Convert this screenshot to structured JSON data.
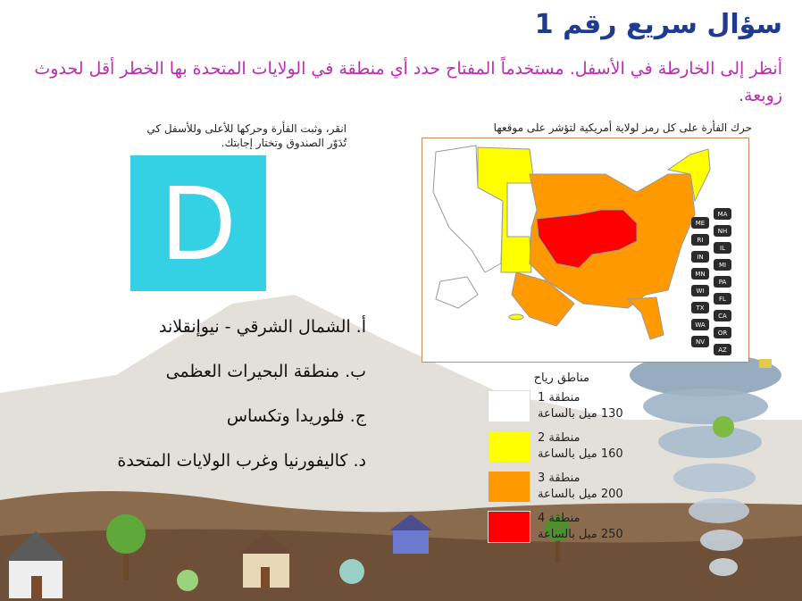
{
  "title": "سؤال سريع رقم 1",
  "prompt": "أنظر إلى الخارطة في الأسفل. مستخدماً المفتاح حدد أي منطقة في الولايات المتحدة بها الخطر أقل لحدوث زوبعة.",
  "map": {
    "instruction": "حرك الفأرة على كل رمز لولاية أمريكية لتؤشر على موقعها",
    "state_codes": [
      "MA",
      "ME",
      "NH",
      "RI",
      "IL",
      "IN",
      "MI",
      "MN",
      "PA",
      "WI",
      "FL",
      "TX",
      "CA",
      "WA",
      "OR",
      "NV",
      "AZ"
    ]
  },
  "answer_box": {
    "instruction": "انقر، وثبت الفأرة وحركها للأعلى وللأسفل كي تُدَوّر الصندوق وتختار إجابتك.",
    "selected_letter": "D",
    "color": "#33d1e3"
  },
  "options": [
    "أ. الشمال الشرقي - نيوإنقلاند",
    "ب. منطقة البحيرات العظمى",
    "ج. فلوريدا وتكساس",
    "د. كاليفورنيا وغرب الولايات المتحدة"
  ],
  "legend": {
    "title": "مناطق رياح",
    "items": [
      {
        "zone": "منطقة 1",
        "speed": "130 ميل بالساعة",
        "color": "#ffffff"
      },
      {
        "zone": "منطقة 2",
        "speed": "160 ميل بالساعة",
        "color": "#ffff00"
      },
      {
        "zone": "منطقة 3",
        "speed": "200 ميل بالساعة",
        "color": "#ff9900"
      },
      {
        "zone": "منطقة 4",
        "speed": "250 ميل بالساعة",
        "color": "#ff0000"
      }
    ]
  }
}
